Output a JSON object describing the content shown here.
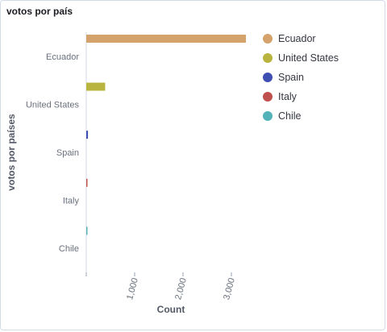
{
  "panel": {
    "title": "votos por país"
  },
  "chart_data": {
    "type": "bar",
    "orientation": "horizontal",
    "categories": [
      "Ecuador",
      "United States",
      "Spain",
      "Italy",
      "Chile"
    ],
    "values": [
      3300,
      390,
      35,
      20,
      8
    ],
    "colors": [
      "#d6a26b",
      "#b9b33f",
      "#3f4eb1",
      "#c0504d",
      "#54b3b9"
    ],
    "xlabel": "Count",
    "ylabel": "votos por países",
    "xticks": [
      1000,
      2000,
      3000
    ],
    "xtick_labels": [
      "1,000",
      "2,000",
      "3,000"
    ],
    "xlim": [
      0,
      3500
    ],
    "grid": false,
    "legend": {
      "position": "right",
      "items": [
        "Ecuador",
        "United States",
        "Spain",
        "Italy",
        "Chile"
      ]
    }
  }
}
